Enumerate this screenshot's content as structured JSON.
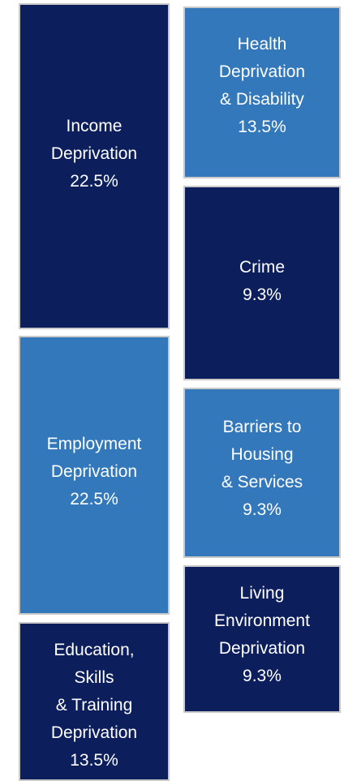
{
  "colors": {
    "dark_tile": "#0c1f5c",
    "light_tile": "#3278ba",
    "border": "#c9c9c9",
    "text": "#ffffff"
  },
  "domains": [
    {
      "lines": [
        "Income",
        "Deprivation"
      ],
      "value": "22.5%",
      "weight": 22.5
    },
    {
      "lines": [
        "Employment",
        "Deprivation"
      ],
      "value": "22.5%",
      "weight": 22.5
    },
    {
      "lines": [
        "Education,",
        "Skills",
        "& Training",
        "Deprivation"
      ],
      "value": "13.5%",
      "weight": 13.5
    },
    {
      "lines": [
        "Health",
        "Deprivation",
        "& Disability"
      ],
      "value": "13.5%",
      "weight": 13.5
    },
    {
      "lines": [
        "Crime"
      ],
      "value": "9.3%",
      "weight": 9.3
    },
    {
      "lines": [
        "Barriers to",
        "Housing",
        "& Services"
      ],
      "value": "9.3%",
      "weight": 9.3
    },
    {
      "lines": [
        "Living",
        "Environment",
        "Deprivation"
      ],
      "value": "9.3%",
      "weight": 9.3
    }
  ]
}
